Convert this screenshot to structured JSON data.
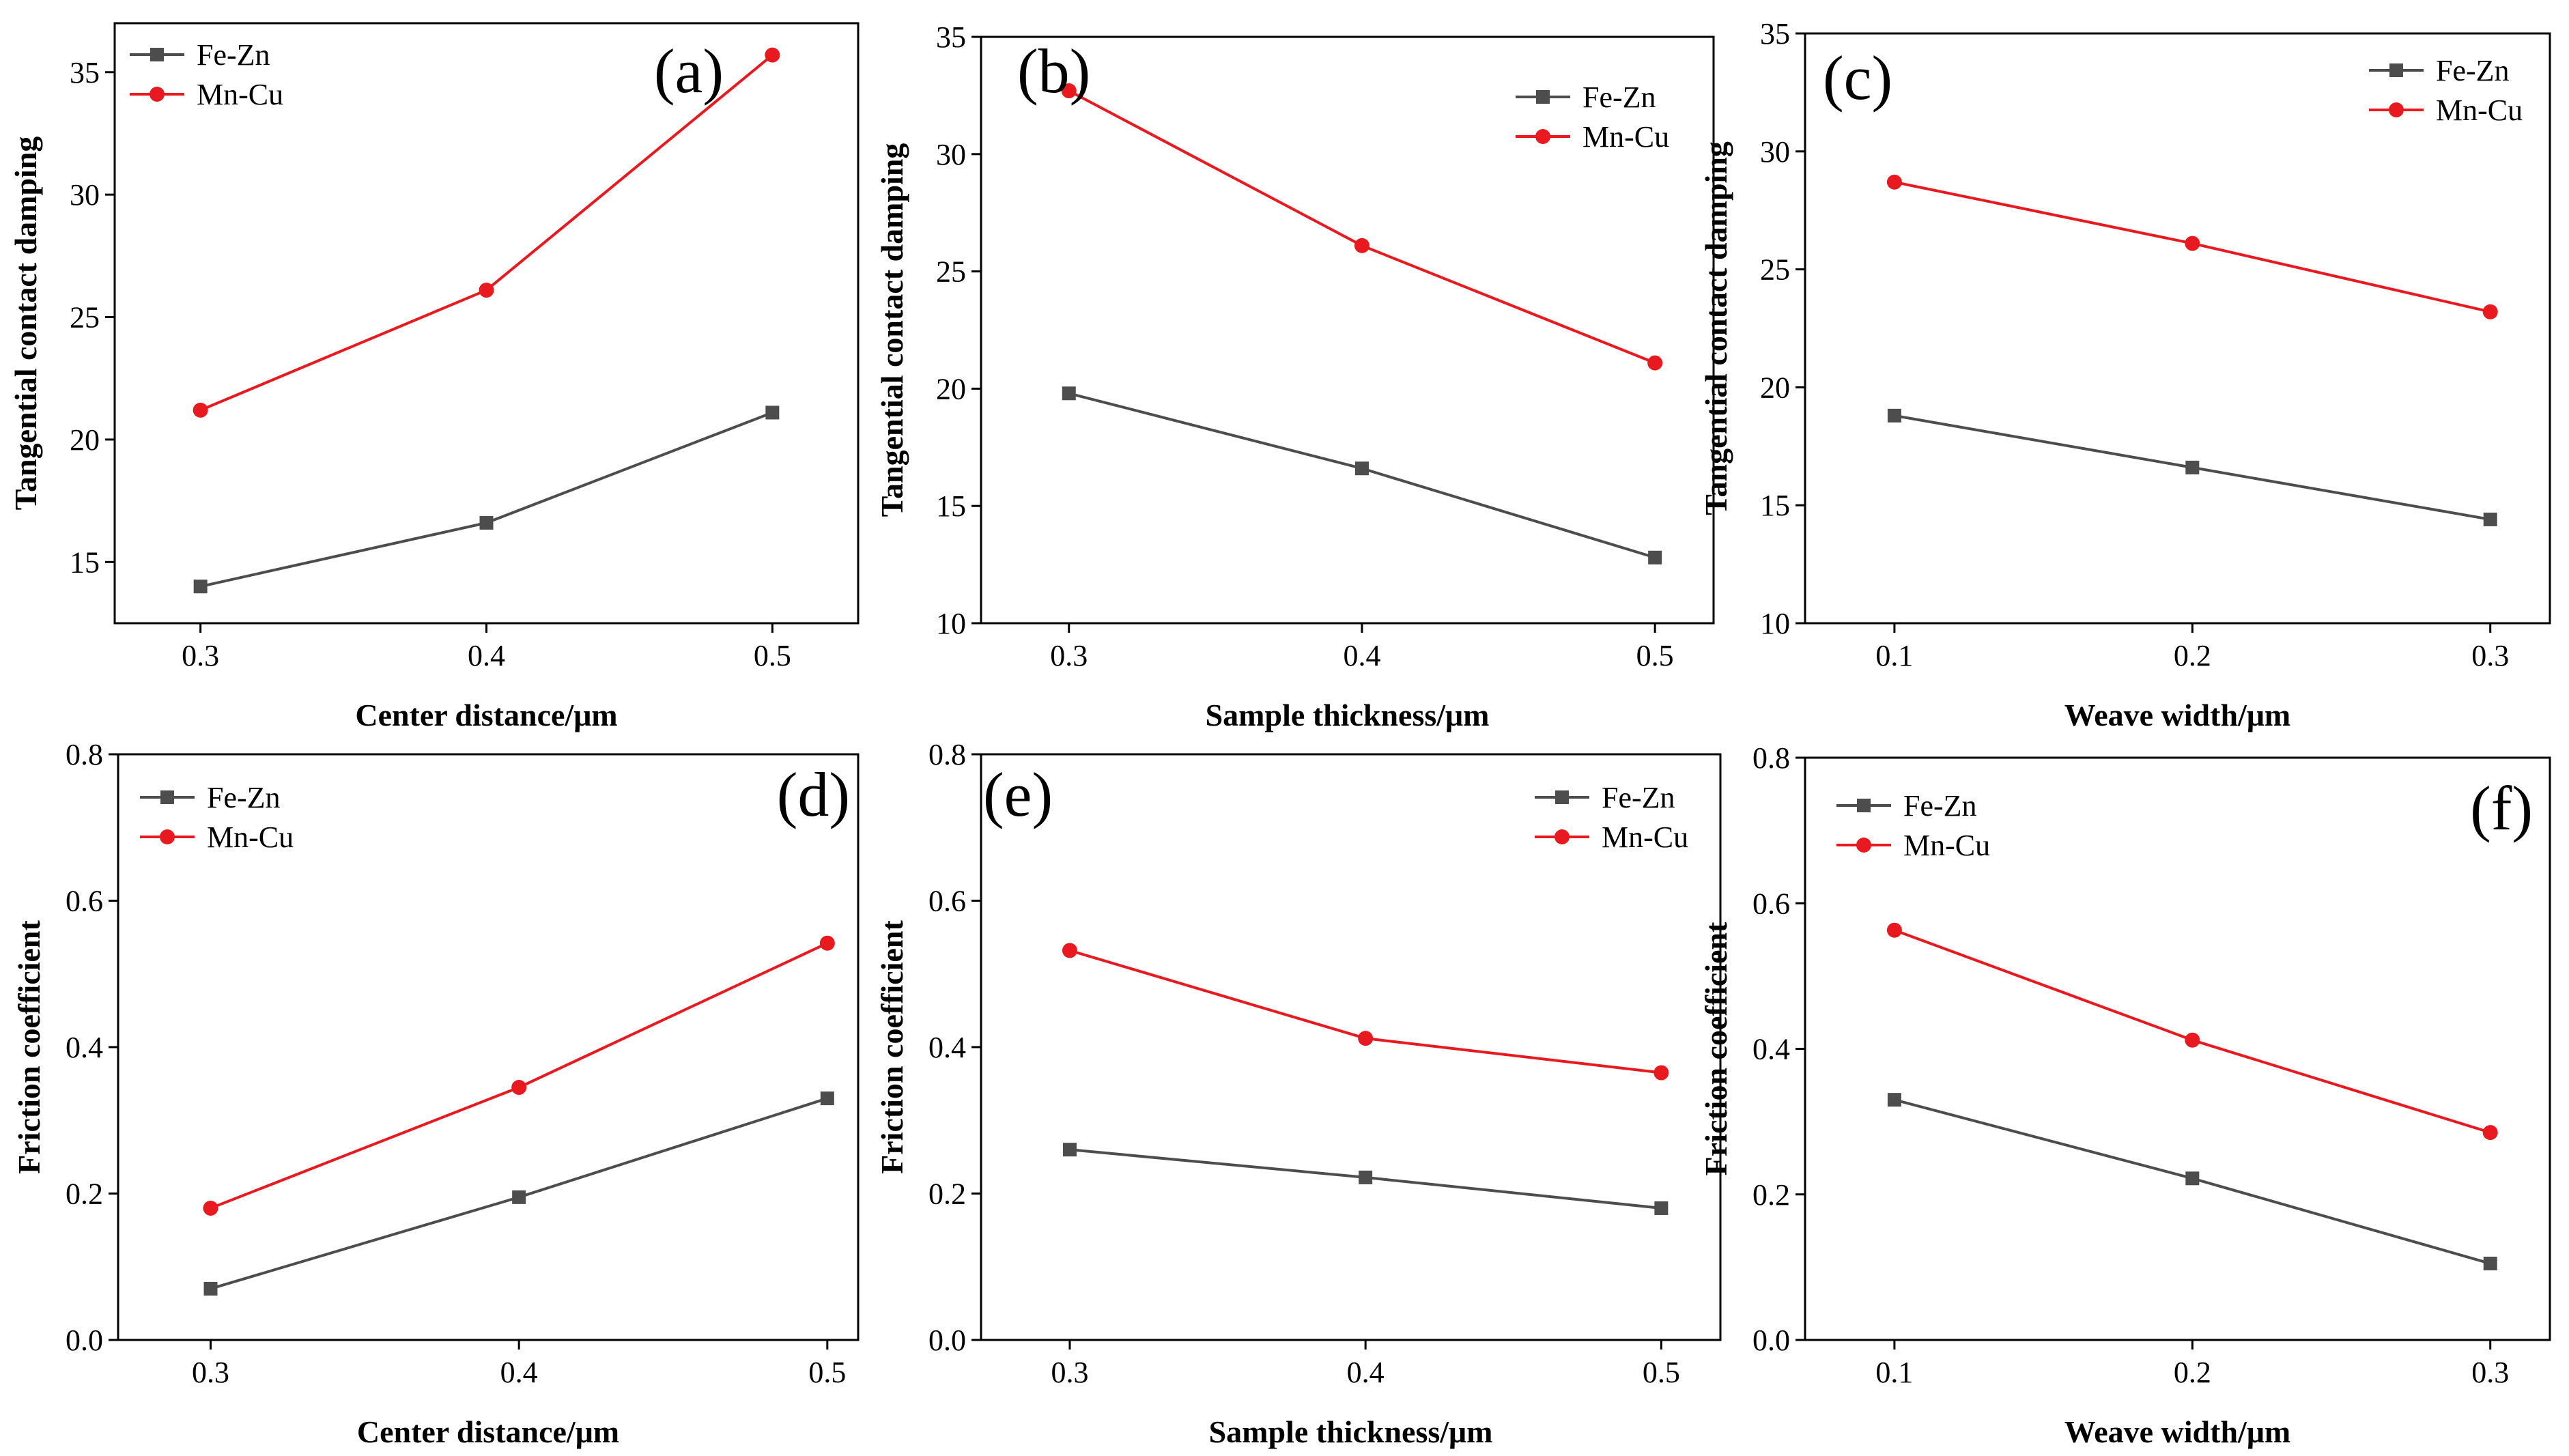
{
  "figure": {
    "series_colors": {
      "Fe-Zn": "#4d4d4d",
      "Mn-Cu": "#e8191f"
    }
  },
  "chart_data": [
    {
      "type": "line",
      "panel": "(a)",
      "xlabel": "Center distance/μm",
      "ylabel": "Tangential contact damping",
      "categories": [
        "0.3",
        "0.4",
        "0.5"
      ],
      "x": [
        0.3,
        0.4,
        0.5
      ],
      "xlim": [
        0.27,
        0.53
      ],
      "ylim": [
        12.5,
        37
      ],
      "yticks": [
        15,
        20,
        25,
        30,
        35
      ],
      "legend": "top-left",
      "series": [
        {
          "name": "Fe-Zn",
          "values": [
            14.0,
            16.6,
            21.1
          ]
        },
        {
          "name": "Mn-Cu",
          "values": [
            21.2,
            26.1,
            35.7
          ]
        }
      ]
    },
    {
      "type": "line",
      "panel": "(b)",
      "xlabel": "Sample thickness/μm",
      "ylabel": "Tangential contact damping",
      "categories": [
        "0.3",
        "0.4",
        "0.5"
      ],
      "x": [
        0.3,
        0.4,
        0.5
      ],
      "xlim": [
        0.27,
        0.52
      ],
      "ylim": [
        10,
        35
      ],
      "yticks": [
        10,
        15,
        20,
        25,
        30,
        35
      ],
      "legend": "top-right",
      "series": [
        {
          "name": "Fe-Zn",
          "values": [
            19.8,
            16.6,
            12.8
          ]
        },
        {
          "name": "Mn-Cu",
          "values": [
            32.7,
            26.1,
            21.1
          ]
        }
      ]
    },
    {
      "type": "line",
      "panel": "(c)",
      "xlabel": "Weave width/μm",
      "ylabel": "Tangential contact damping",
      "categories": [
        "0.1",
        "0.2",
        "0.3"
      ],
      "x": [
        0.1,
        0.2,
        0.3
      ],
      "xlim": [
        0.07,
        0.32
      ],
      "ylim": [
        10,
        35
      ],
      "yticks": [
        10,
        15,
        20,
        25,
        30,
        35
      ],
      "legend": "top-right",
      "series": [
        {
          "name": "Fe-Zn",
          "values": [
            18.8,
            16.6,
            14.4
          ]
        },
        {
          "name": "Mn-Cu",
          "values": [
            28.7,
            26.1,
            23.2
          ]
        }
      ]
    },
    {
      "type": "line",
      "panel": "(d)",
      "xlabel": "Center distance/μm",
      "ylabel": "Friction coefficient",
      "categories": [
        "0.3",
        "0.4",
        "0.5"
      ],
      "x": [
        0.3,
        0.4,
        0.5
      ],
      "xlim": [
        0.27,
        0.51
      ],
      "ylim": [
        0,
        0.8
      ],
      "yticks": [
        0.0,
        0.2,
        0.4,
        0.6,
        0.8
      ],
      "legend": "top-left",
      "series": [
        {
          "name": "Fe-Zn",
          "values": [
            0.07,
            0.195,
            0.33
          ]
        },
        {
          "name": "Mn-Cu",
          "values": [
            0.18,
            0.345,
            0.542
          ]
        }
      ]
    },
    {
      "type": "line",
      "panel": "(e)",
      "xlabel": "Sample thickness/μm",
      "ylabel": "Friction coefficient",
      "categories": [
        "0.3",
        "0.4",
        "0.5"
      ],
      "x": [
        0.3,
        0.4,
        0.5
      ],
      "xlim": [
        0.27,
        0.52
      ],
      "ylim": [
        0,
        0.8
      ],
      "yticks": [
        0.0,
        0.2,
        0.4,
        0.6,
        0.8
      ],
      "legend": "top-right",
      "series": [
        {
          "name": "Fe-Zn",
          "values": [
            0.26,
            0.222,
            0.18
          ]
        },
        {
          "name": "Mn-Cu",
          "values": [
            0.532,
            0.412,
            0.365
          ]
        }
      ]
    },
    {
      "type": "line",
      "panel": "(f)",
      "xlabel": "Weave width/μm",
      "ylabel": "Friction coefficient",
      "categories": [
        "0.1",
        "0.2",
        "0.3"
      ],
      "x": [
        0.1,
        0.2,
        0.3
      ],
      "xlim": [
        0.07,
        0.32
      ],
      "ylim": [
        0,
        0.8
      ],
      "yticks": [
        0.0,
        0.2,
        0.4,
        0.6,
        0.8
      ],
      "legend": "top-left",
      "series": [
        {
          "name": "Fe-Zn",
          "values": [
            0.33,
            0.222,
            0.105
          ]
        },
        {
          "name": "Mn-Cu",
          "values": [
            0.563,
            0.412,
            0.285
          ]
        }
      ]
    }
  ]
}
